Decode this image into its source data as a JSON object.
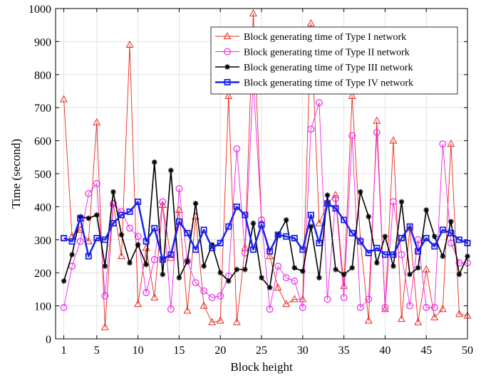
{
  "chart_data": {
    "type": "line",
    "title": "",
    "xlabel": "Block height",
    "ylabel": "Time (second)",
    "xlim": [
      0,
      50
    ],
    "ylim": [
      0,
      1000
    ],
    "xticks": [
      1,
      5,
      10,
      15,
      20,
      25,
      30,
      35,
      40,
      45,
      50
    ],
    "yticks": [
      0,
      100,
      200,
      300,
      400,
      500,
      600,
      700,
      800,
      900,
      1000
    ],
    "grid": true,
    "legend_position": "top-right",
    "x": [
      1,
      2,
      3,
      4,
      5,
      6,
      7,
      8,
      9,
      10,
      11,
      12,
      13,
      14,
      15,
      16,
      17,
      18,
      19,
      20,
      21,
      22,
      23,
      24,
      25,
      26,
      27,
      28,
      29,
      30,
      31,
      32,
      33,
      34,
      35,
      36,
      37,
      38,
      39,
      40,
      41,
      42,
      43,
      44,
      45,
      46,
      47,
      48,
      49,
      50
    ],
    "series": [
      {
        "name": "Block generating time of Type I network",
        "color": "#e8291c",
        "marker": "triangle",
        "line_width": 0.9,
        "values": [
          725,
          310,
          330,
          295,
          655,
          35,
          410,
          250,
          890,
          105,
          275,
          125,
          405,
          245,
          390,
          85,
          370,
          100,
          50,
          55,
          735,
          50,
          275,
          985,
          350,
          250,
          155,
          105,
          120,
          120,
          955,
          350,
          410,
          435,
          160,
          735,
          300,
          55,
          660,
          90,
          600,
          60,
          335,
          50,
          210,
          65,
          90,
          590,
          75,
          70
        ]
      },
      {
        "name": "Block generating time of Type II network",
        "color": "#ee22ee",
        "marker": "circle",
        "line_width": 0.9,
        "values": [
          95,
          220,
          295,
          440,
          470,
          130,
          410,
          385,
          335,
          310,
          140,
          240,
          415,
          90,
          455,
          235,
          170,
          145,
          125,
          130,
          190,
          575,
          260,
          780,
          360,
          90,
          220,
          185,
          175,
          95,
          635,
          715,
          120,
          425,
          125,
          615,
          95,
          120,
          625,
          95,
          415,
          255,
          100,
          300,
          95,
          95,
          590,
          290,
          230,
          230
        ]
      },
      {
        "name": "Block generating time of Type III network",
        "color": "#000000",
        "marker": "asterisk",
        "line_width": 1.6,
        "values": [
          175,
          255,
          370,
          365,
          375,
          220,
          445,
          315,
          230,
          285,
          225,
          535,
          195,
          510,
          185,
          235,
          410,
          220,
          285,
          200,
          175,
          210,
          210,
          350,
          185,
          155,
          315,
          360,
          215,
          205,
          340,
          185,
          435,
          210,
          195,
          215,
          445,
          370,
          230,
          310,
          220,
          415,
          195,
          215,
          390,
          310,
          250,
          355,
          195,
          250
        ]
      },
      {
        "name": "Block generating time of Type IV network",
        "color": "#1a22ee",
        "marker": "square",
        "line_width": 2.5,
        "values": [
          305,
          295,
          365,
          250,
          305,
          300,
          350,
          375,
          385,
          415,
          295,
          335,
          240,
          255,
          355,
          320,
          270,
          330,
          275,
          290,
          340,
          400,
          375,
          270,
          345,
          265,
          315,
          310,
          305,
          270,
          375,
          290,
          410,
          395,
          360,
          320,
          295,
          260,
          275,
          255,
          255,
          305,
          340,
          265,
          305,
          280,
          330,
          320,
          300,
          290
        ]
      }
    ]
  }
}
